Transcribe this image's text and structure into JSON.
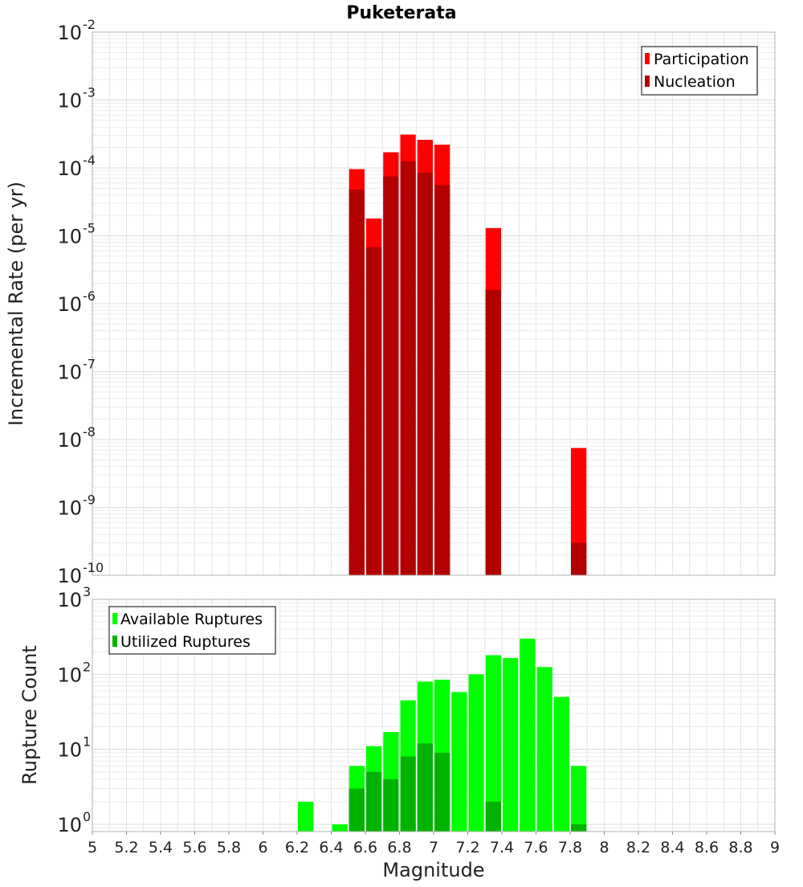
{
  "title": "Puketerata",
  "chart_data": [
    {
      "type": "bar",
      "title": "Puketerata",
      "xlabel": "Magnitude",
      "ylabel": "Incremental Rate (per yr)",
      "yscale": "log",
      "ylim": [
        1e-10,
        0.01
      ],
      "y_tick_exponents": [
        -10,
        -9,
        -8,
        -7,
        -6,
        -5,
        -4,
        -3,
        -2
      ],
      "bin_width": 0.1,
      "grid": true,
      "legend_position": "top-right",
      "series": [
        {
          "name": "Participation",
          "color": "#ff0000",
          "points": [
            {
              "x": 6.55,
              "y": 9.6e-05
            },
            {
              "x": 6.65,
              "y": 1.8e-05
            },
            {
              "x": 6.75,
              "y": 0.00017
            },
            {
              "x": 6.85,
              "y": 0.00031
            },
            {
              "x": 6.95,
              "y": 0.00026
            },
            {
              "x": 7.05,
              "y": 0.00022
            },
            {
              "x": 7.35,
              "y": 1.3e-05
            },
            {
              "x": 7.85,
              "y": 7.5e-09
            }
          ]
        },
        {
          "name": "Nucleation",
          "color": "#b30000",
          "points": [
            {
              "x": 6.55,
              "y": 4.8e-05
            },
            {
              "x": 6.65,
              "y": 6.8e-06
            },
            {
              "x": 6.75,
              "y": 7.5e-05
            },
            {
              "x": 6.85,
              "y": 0.000125
            },
            {
              "x": 6.95,
              "y": 8.5e-05
            },
            {
              "x": 7.05,
              "y": 5.6e-05
            },
            {
              "x": 7.35,
              "y": 1.6e-06
            },
            {
              "x": 7.85,
              "y": 3e-10
            }
          ]
        }
      ]
    },
    {
      "type": "bar",
      "xlabel": "Magnitude",
      "ylabel": "Rupture Count",
      "yscale": "log",
      "ylim": [
        0.8,
        1000
      ],
      "y_tick_exponents": [
        0,
        1,
        2,
        3
      ],
      "xlim": [
        5,
        9
      ],
      "x_ticks": [
        "5",
        "5.2",
        "5.4",
        "5.6",
        "5.8",
        "6",
        "6.2",
        "6.4",
        "6.6",
        "6.8",
        "7",
        "7.2",
        "7.4",
        "7.6",
        "7.8",
        "8",
        "8.2",
        "8.4",
        "8.6",
        "8.8",
        "9"
      ],
      "bin_width": 0.1,
      "grid": true,
      "legend_position": "top-left",
      "series": [
        {
          "name": "Available Ruptures",
          "color": "#00ff00",
          "points": [
            {
              "x": 6.25,
              "y": 2
            },
            {
              "x": 6.45,
              "y": 1
            },
            {
              "x": 6.55,
              "y": 6
            },
            {
              "x": 6.65,
              "y": 11
            },
            {
              "x": 6.75,
              "y": 17
            },
            {
              "x": 6.85,
              "y": 45
            },
            {
              "x": 6.95,
              "y": 80
            },
            {
              "x": 7.05,
              "y": 85
            },
            {
              "x": 7.15,
              "y": 58
            },
            {
              "x": 7.25,
              "y": 100
            },
            {
              "x": 7.35,
              "y": 180
            },
            {
              "x": 7.45,
              "y": 165
            },
            {
              "x": 7.55,
              "y": 300
            },
            {
              "x": 7.65,
              "y": 125
            },
            {
              "x": 7.75,
              "y": 50
            },
            {
              "x": 7.85,
              "y": 6
            }
          ]
        },
        {
          "name": "Utilized Ruptures",
          "color": "#00b300",
          "points": [
            {
              "x": 6.55,
              "y": 3
            },
            {
              "x": 6.65,
              "y": 5
            },
            {
              "x": 6.75,
              "y": 4
            },
            {
              "x": 6.85,
              "y": 8
            },
            {
              "x": 6.95,
              "y": 12
            },
            {
              "x": 7.05,
              "y": 9
            },
            {
              "x": 7.35,
              "y": 2
            },
            {
              "x": 7.85,
              "y": 1
            }
          ]
        }
      ]
    }
  ]
}
